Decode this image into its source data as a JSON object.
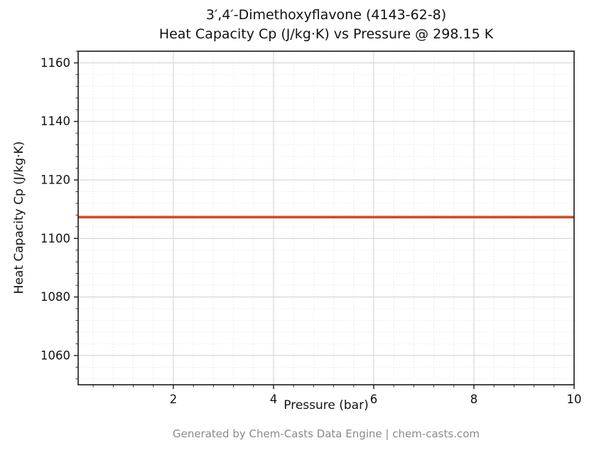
{
  "figure": {
    "title_line1": "3′,4′-Dimethoxyflavone (4143-62-8)",
    "title_line2": "Heat Capacity Cp (J/kg·K) vs Pressure @ 298.15 K",
    "footer": "Generated by Chem-Casts Data Engine | chem-casts.com"
  },
  "chart_data": {
    "type": "line",
    "title": "3′,4′-Dimethoxyflavone (4143-62-8) — Heat Capacity Cp (J/kg·K) vs Pressure @ 298.15 K",
    "xlabel": "Pressure (bar)",
    "ylabel": "Heat Capacity Cp (J/kg·K)",
    "xlim": [
      0.1,
      10
    ],
    "ylim": [
      1050,
      1164
    ],
    "x_ticks": [
      2,
      4,
      6,
      8,
      10
    ],
    "y_ticks": [
      1060,
      1080,
      1100,
      1120,
      1140,
      1160
    ],
    "x_minor_step": 0.4,
    "y_minor_step": 4,
    "grid": true,
    "legend": "none",
    "series": [
      {
        "name": "Heat Capacity Cp",
        "color": "#cf4c24",
        "x": [
          0.1,
          1,
          2,
          3,
          4,
          5,
          6,
          7,
          8,
          9,
          10
        ],
        "y": [
          1107.3,
          1107.3,
          1107.3,
          1107.3,
          1107.3,
          1107.3,
          1107.3,
          1107.3,
          1107.3,
          1107.3,
          1107.3
        ]
      }
    ]
  }
}
